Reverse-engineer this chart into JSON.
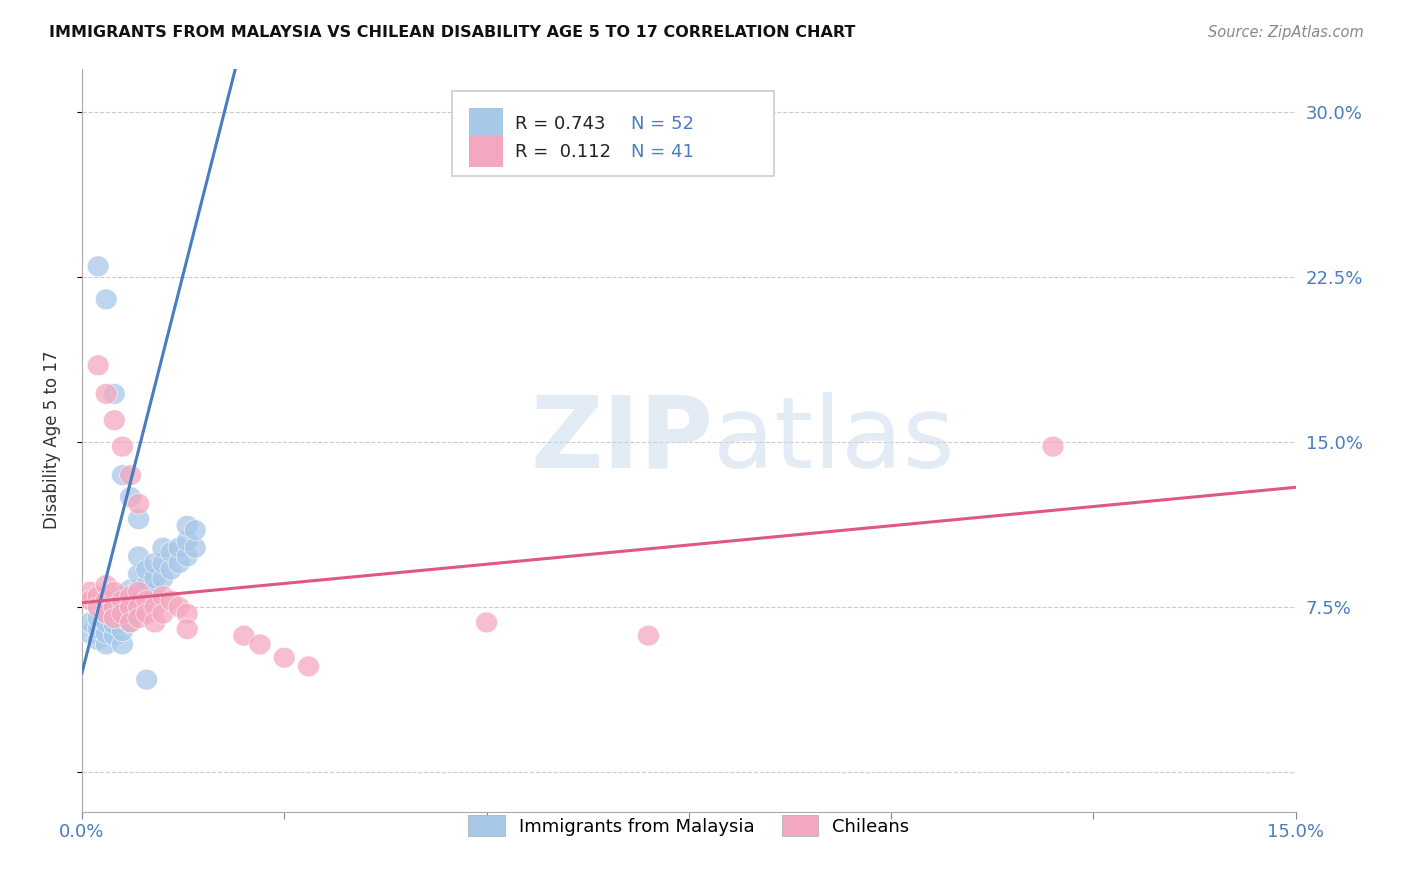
{
  "title": "IMMIGRANTS FROM MALAYSIA VS CHILEAN DISABILITY AGE 5 TO 17 CORRELATION CHART",
  "source": "Source: ZipAtlas.com",
  "ylabel": "Disability Age 5 to 17",
  "xlim": [
    0.0,
    0.15
  ],
  "ylim": [
    -0.018,
    0.32
  ],
  "yticks": [
    0.0,
    0.075,
    0.15,
    0.225,
    0.3
  ],
  "ytick_labels": [
    "",
    "7.5%",
    "15.0%",
    "22.5%",
    "30.0%"
  ],
  "xtick_positions": [
    0.0,
    0.025,
    0.05,
    0.075,
    0.1,
    0.125,
    0.15
  ],
  "xtick_labels": [
    "0.0%",
    "",
    "",
    "",
    "",
    "",
    "15.0%"
  ],
  "legend_R_blue": "0.743",
  "legend_N_blue": "52",
  "legend_R_pink": "0.112",
  "legend_N_pink": "41",
  "blue_color": "#a8c8e8",
  "pink_color": "#f4a8c0",
  "blue_line_color": "#4a7cc0",
  "pink_line_color": "#e05880",
  "watermark_ZIP": "ZIP",
  "watermark_atlas": "atlas",
  "blue_scatter": [
    [
      0.001,
      0.063
    ],
    [
      0.001,
      0.068
    ],
    [
      0.002,
      0.06
    ],
    [
      0.002,
      0.065
    ],
    [
      0.002,
      0.07
    ],
    [
      0.003,
      0.058
    ],
    [
      0.003,
      0.063
    ],
    [
      0.003,
      0.068
    ],
    [
      0.003,
      0.072
    ],
    [
      0.004,
      0.062
    ],
    [
      0.004,
      0.067
    ],
    [
      0.004,
      0.073
    ],
    [
      0.004,
      0.078
    ],
    [
      0.005,
      0.058
    ],
    [
      0.005,
      0.064
    ],
    [
      0.005,
      0.07
    ],
    [
      0.005,
      0.075
    ],
    [
      0.005,
      0.08
    ],
    [
      0.006,
      0.068
    ],
    [
      0.006,
      0.073
    ],
    [
      0.006,
      0.078
    ],
    [
      0.006,
      0.083
    ],
    [
      0.007,
      0.072
    ],
    [
      0.007,
      0.078
    ],
    [
      0.007,
      0.083
    ],
    [
      0.007,
      0.09
    ],
    [
      0.007,
      0.098
    ],
    [
      0.008,
      0.078
    ],
    [
      0.008,
      0.085
    ],
    [
      0.008,
      0.092
    ],
    [
      0.009,
      0.082
    ],
    [
      0.009,
      0.088
    ],
    [
      0.009,
      0.095
    ],
    [
      0.01,
      0.088
    ],
    [
      0.01,
      0.095
    ],
    [
      0.01,
      0.102
    ],
    [
      0.011,
      0.092
    ],
    [
      0.011,
      0.1
    ],
    [
      0.012,
      0.095
    ],
    [
      0.012,
      0.102
    ],
    [
      0.013,
      0.098
    ],
    [
      0.013,
      0.105
    ],
    [
      0.013,
      0.112
    ],
    [
      0.014,
      0.102
    ],
    [
      0.014,
      0.11
    ],
    [
      0.002,
      0.23
    ],
    [
      0.003,
      0.215
    ],
    [
      0.004,
      0.172
    ],
    [
      0.005,
      0.135
    ],
    [
      0.006,
      0.125
    ],
    [
      0.007,
      0.115
    ],
    [
      0.008,
      0.042
    ]
  ],
  "pink_scatter": [
    [
      0.001,
      0.082
    ],
    [
      0.001,
      0.078
    ],
    [
      0.002,
      0.08
    ],
    [
      0.002,
      0.075
    ],
    [
      0.003,
      0.085
    ],
    [
      0.003,
      0.078
    ],
    [
      0.003,
      0.072
    ],
    [
      0.004,
      0.082
    ],
    [
      0.004,
      0.075
    ],
    [
      0.004,
      0.07
    ],
    [
      0.005,
      0.078
    ],
    [
      0.005,
      0.072
    ],
    [
      0.006,
      0.08
    ],
    [
      0.006,
      0.075
    ],
    [
      0.006,
      0.068
    ],
    [
      0.007,
      0.082
    ],
    [
      0.007,
      0.075
    ],
    [
      0.007,
      0.07
    ],
    [
      0.008,
      0.078
    ],
    [
      0.008,
      0.072
    ],
    [
      0.009,
      0.075
    ],
    [
      0.009,
      0.068
    ],
    [
      0.01,
      0.08
    ],
    [
      0.01,
      0.072
    ],
    [
      0.011,
      0.078
    ],
    [
      0.012,
      0.075
    ],
    [
      0.013,
      0.072
    ],
    [
      0.013,
      0.065
    ],
    [
      0.02,
      0.062
    ],
    [
      0.022,
      0.058
    ],
    [
      0.025,
      0.052
    ],
    [
      0.028,
      0.048
    ],
    [
      0.002,
      0.185
    ],
    [
      0.003,
      0.172
    ],
    [
      0.004,
      0.16
    ],
    [
      0.005,
      0.148
    ],
    [
      0.006,
      0.135
    ],
    [
      0.007,
      0.122
    ],
    [
      0.05,
      0.068
    ],
    [
      0.07,
      0.062
    ],
    [
      0.12,
      0.148
    ]
  ],
  "blue_trend": {
    "slope": 14.5,
    "intercept": 0.045
  },
  "pink_trend": {
    "slope": 0.35,
    "intercept": 0.077
  }
}
